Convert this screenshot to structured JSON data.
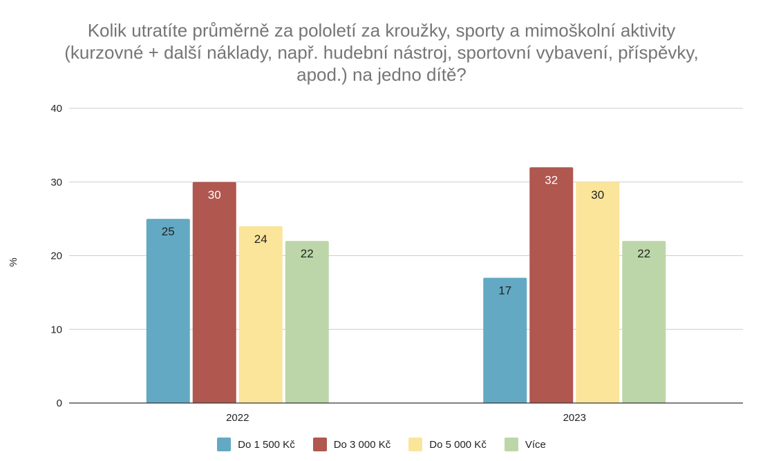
{
  "colors": {
    "series": [
      "#63a9c4",
      "#b0574f",
      "#fbe59b",
      "#bdd6a9"
    ],
    "grid": "#cccccc",
    "axis": "#333333",
    "title": "#757575"
  },
  "chart_data": {
    "type": "bar",
    "title_lines": [
      "Kolik utratíte průměrně za pololetí za kroužky, sporty a mimoškolní aktivity",
      "(kurzovné + další náklady, např. hudební nástroj, sportovní vybavení, příspěvky,",
      "apod.) na jedno dítě?"
    ],
    "xlabel": "",
    "ylabel": "%",
    "ylim": [
      0,
      40
    ],
    "yticks": [
      0,
      10,
      20,
      30,
      40
    ],
    "grid": true,
    "legend_position": "bottom",
    "categories": [
      "2022",
      "2023"
    ],
    "series": [
      {
        "name": "Do 1 500 Kč",
        "values": [
          25,
          17
        ]
      },
      {
        "name": "Do 3 000 Kč",
        "values": [
          30,
          32
        ]
      },
      {
        "name": "Do 5 000 Kč",
        "values": [
          24,
          30
        ]
      },
      {
        "name": "Více",
        "values": [
          22,
          22
        ]
      }
    ]
  }
}
